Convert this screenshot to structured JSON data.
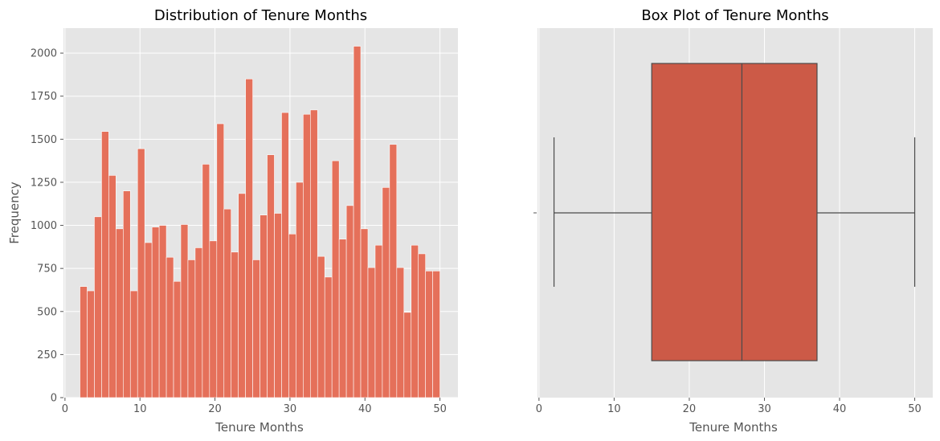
{
  "chart_data": [
    {
      "type": "bar",
      "title": "Distribution of Tenure Months",
      "xlabel": "Tenure Months",
      "ylabel": "Frequency",
      "xlim": [
        -0.2,
        52.4
      ],
      "ylim": [
        0,
        2145
      ],
      "xticks": [
        0,
        10,
        20,
        30,
        40,
        50
      ],
      "yticks": [
        0,
        250,
        500,
        750,
        1000,
        1250,
        1500,
        1750,
        2000
      ],
      "grid": true,
      "bin_edges": [
        2.0,
        2.96,
        3.92,
        4.88,
        5.84,
        6.8,
        7.76,
        8.72,
        9.68,
        10.64,
        11.6,
        12.56,
        13.52,
        14.48,
        15.44,
        16.4,
        17.36,
        18.32,
        19.28,
        20.24,
        21.2,
        22.16,
        23.12,
        24.08,
        25.04,
        26.0,
        26.96,
        27.92,
        28.88,
        29.84,
        30.8,
        31.76,
        32.72,
        33.68,
        34.64,
        35.6,
        36.56,
        37.52,
        38.48,
        39.44,
        40.4,
        41.36,
        42.32,
        43.28,
        44.24,
        45.2,
        46.16,
        47.12,
        48.08,
        49.04,
        50.0
      ],
      "values": [
        645,
        620,
        1050,
        1545,
        1290,
        980,
        1200,
        620,
        1445,
        900,
        990,
        1000,
        815,
        675,
        1005,
        800,
        870,
        1355,
        910,
        1590,
        1095,
        845,
        1185,
        1850,
        800,
        1060,
        1410,
        1070,
        1655,
        950,
        1250,
        1645,
        1670,
        820,
        700,
        1375,
        920,
        1115,
        2040,
        980,
        755,
        885,
        1220,
        1470,
        755,
        495,
        885,
        835,
        735,
        735
      ]
    },
    {
      "type": "box",
      "title": "Box Plot of Tenure Months",
      "xlabel": "Tenure Months",
      "xlim": [
        -0.2,
        52.4
      ],
      "xticks": [
        0,
        10,
        20,
        30,
        40,
        50
      ],
      "grid": true,
      "stats": {
        "min": 2,
        "q1": 15,
        "median": 27,
        "q3": 37,
        "max": 50
      }
    }
  ]
}
